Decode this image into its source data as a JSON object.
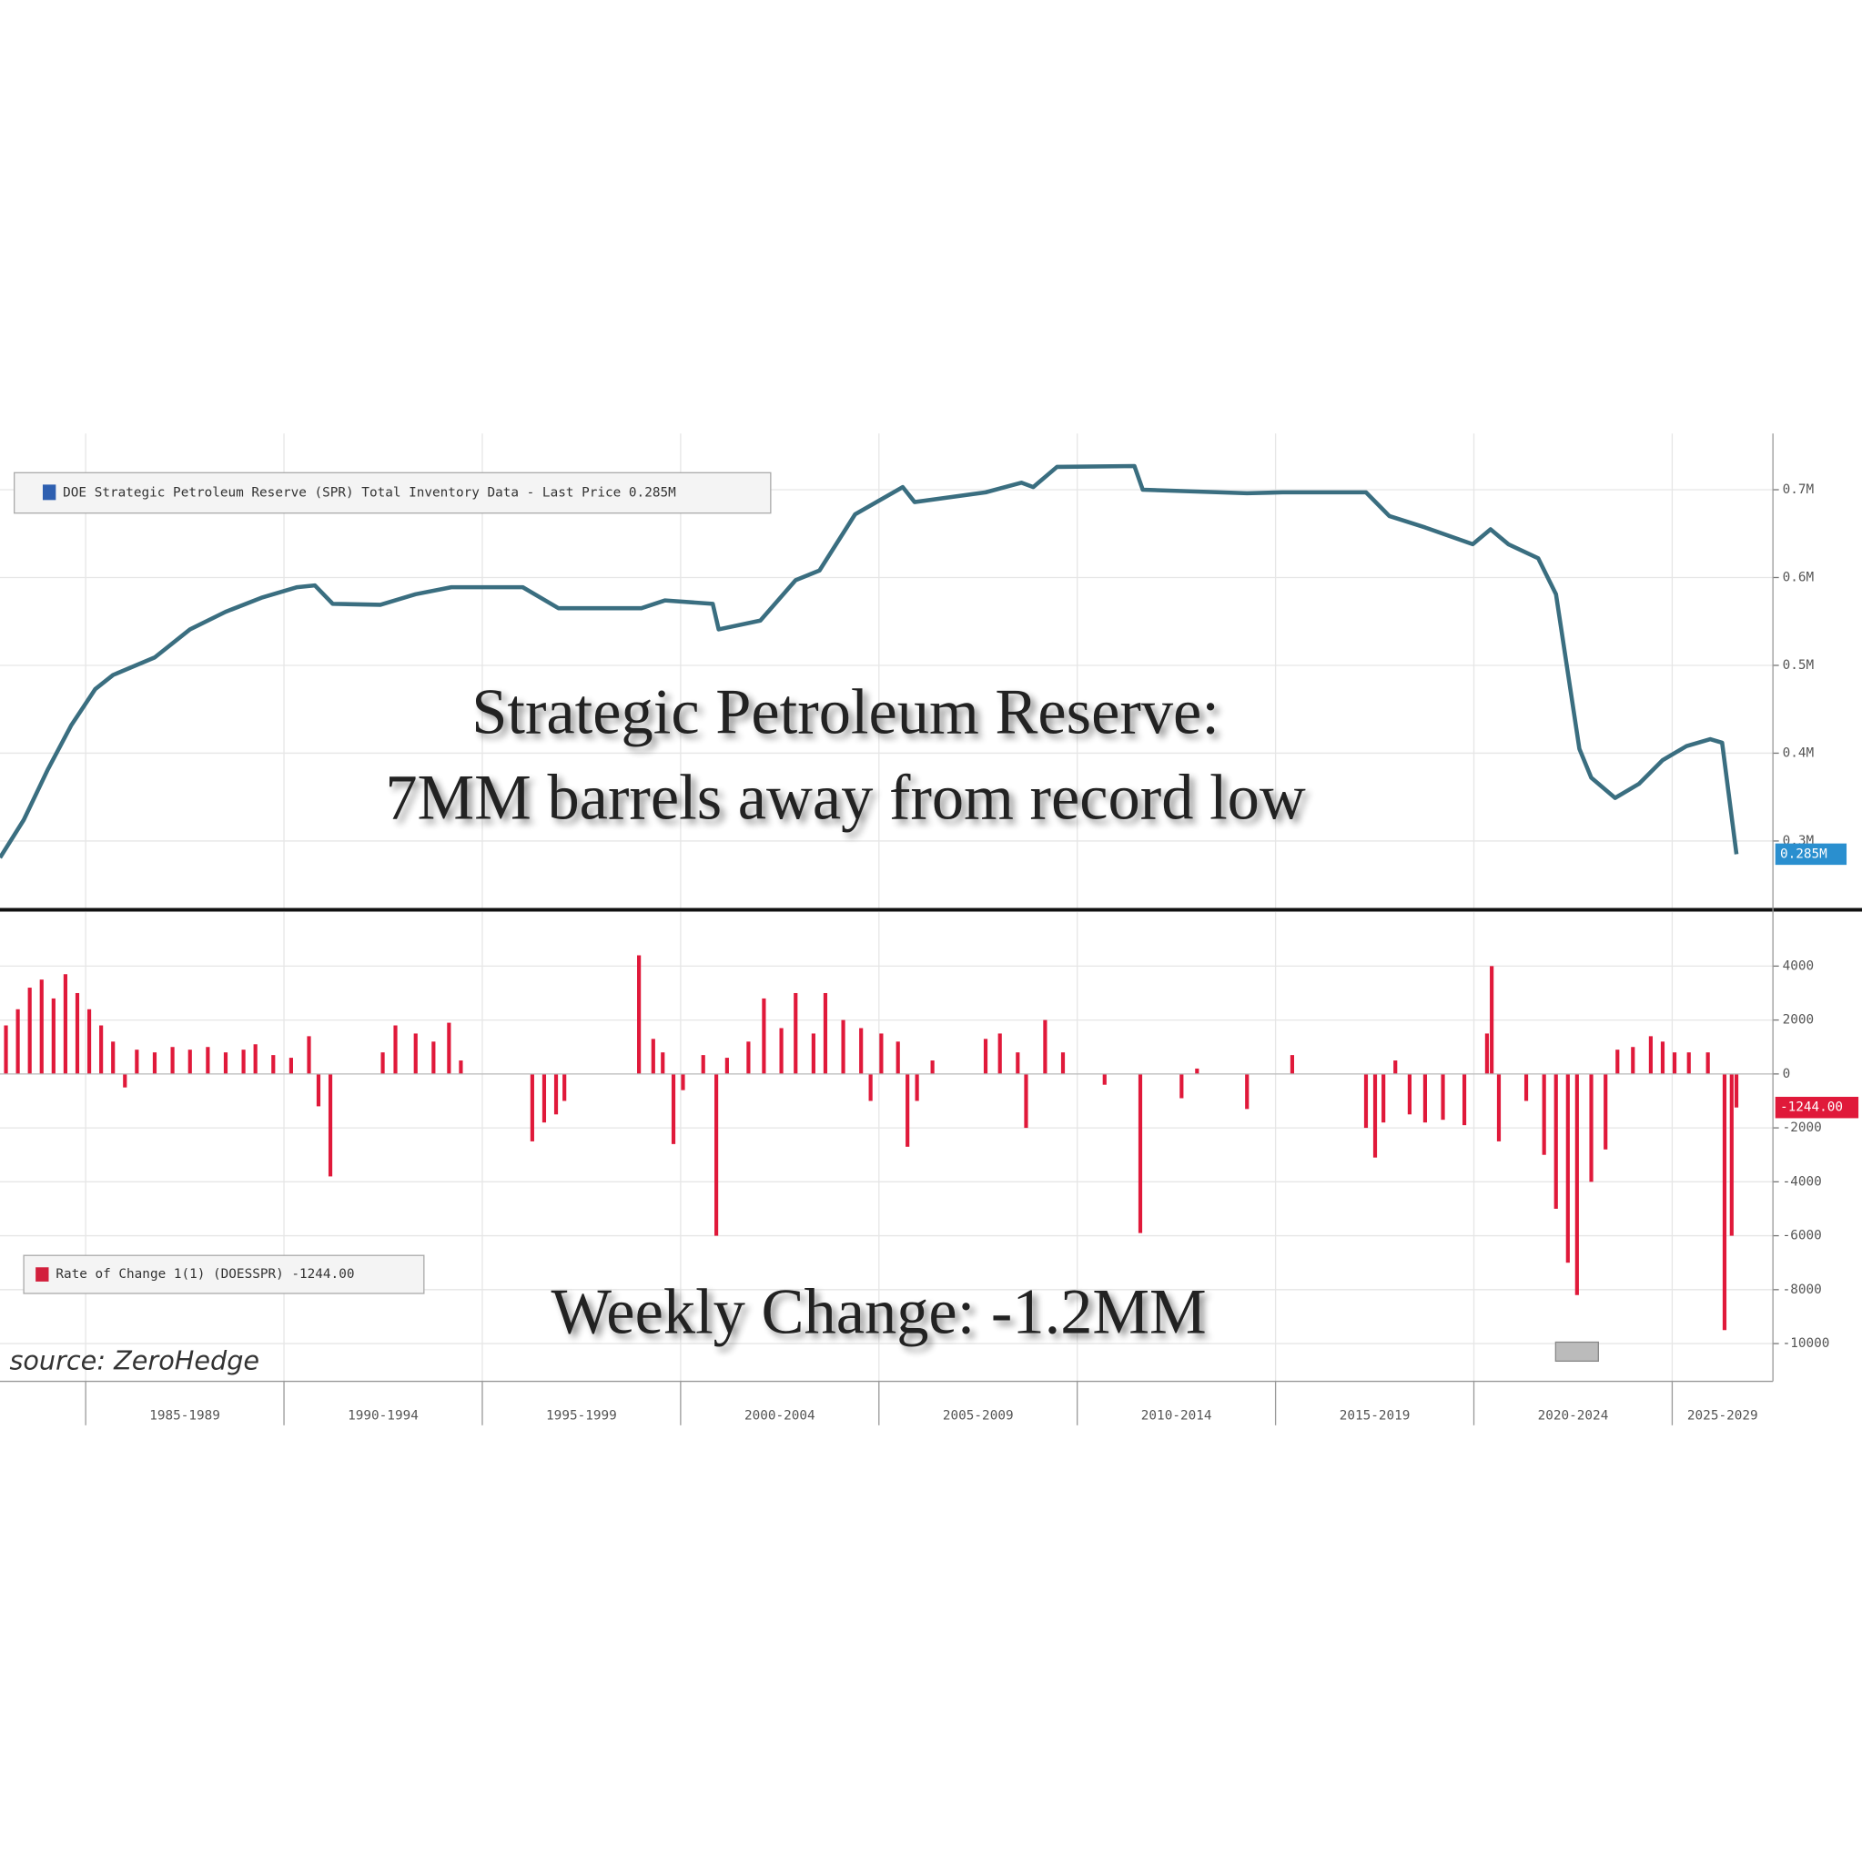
{
  "source": "source: ZeroHedge",
  "chart_data": [
    {
      "type": "line",
      "annotations": [
        "Strategic Petroleum Reserve:",
        "7MM barrels away from record low"
      ],
      "x": [
        1982.84,
        1983.44,
        1984.04,
        1984.64,
        1985.24,
        1985.69,
        1986.74,
        1987.63,
        1988.53,
        1989.43,
        1990.33,
        1990.78,
        1991.23,
        1992.43,
        1993.32,
        1994.22,
        1996.02,
        1996.92,
        1999.01,
        1999.61,
        2000.81,
        2000.96,
        2002.01,
        2002.9,
        2003.5,
        2004.4,
        2005.6,
        2005.9,
        2007.69,
        2008.59,
        2008.89,
        2009.49,
        2011.44,
        2011.65,
        2014.28,
        2015.18,
        2017.28,
        2017.87,
        2018.77,
        2019.97,
        2020.42,
        2020.87,
        2021.62,
        2022.07,
        2022.66,
        2022.96,
        2023.56,
        2024.16,
        2024.76,
        2025.36,
        2025.96,
        2026.26,
        2026.62
      ],
      "series": [
        {
          "name": "DOE Strategic Petroleum Reserve (SPR) Total Inventory Data - Last Price 0.285M",
          "color": "#3a6e80",
          "values": [
            0.281,
            0.324,
            0.381,
            0.432,
            0.473,
            0.489,
            0.509,
            0.541,
            0.561,
            0.577,
            0.589,
            0.591,
            0.57,
            0.569,
            0.581,
            0.589,
            0.589,
            0.565,
            0.565,
            0.574,
            0.57,
            0.541,
            0.551,
            0.597,
            0.608,
            0.672,
            0.703,
            0.686,
            0.697,
            0.708,
            0.703,
            0.726,
            0.727,
            0.7,
            0.696,
            0.697,
            0.697,
            0.67,
            0.657,
            0.638,
            0.655,
            0.638,
            0.622,
            0.581,
            0.405,
            0.372,
            0.349,
            0.365,
            0.392,
            0.408,
            0.416,
            0.412,
            0.285
          ]
        }
      ],
      "last_value_label": "0.285M",
      "xlim": [
        1982.84,
        2027.54
      ],
      "ylim": [
        0.223,
        0.764
      ],
      "yticks": [
        {
          "value": 0.3,
          "label": "0.3M"
        },
        {
          "value": 0.4,
          "label": "0.4M"
        },
        {
          "value": 0.5,
          "label": "0.5M"
        },
        {
          "value": 0.6,
          "label": "0.6M"
        },
        {
          "value": 0.7,
          "label": "0.7M"
        }
      ],
      "grid": true
    },
    {
      "type": "bar",
      "annotation": "Weekly Change: -1.2MM",
      "x": [
        1982.99,
        1983.29,
        1983.59,
        1983.89,
        1984.19,
        1984.49,
        1984.79,
        1985.09,
        1985.39,
        1985.69,
        1985.99,
        1986.29,
        1986.74,
        1987.19,
        1987.63,
        1988.08,
        1988.53,
        1988.98,
        1989.28,
        1989.73,
        1990.18,
        1990.63,
        1990.87,
        1991.17,
        1992.49,
        1992.81,
        1993.32,
        1993.77,
        1994.16,
        1994.46,
        1996.26,
        1996.56,
        1996.86,
        1997.07,
        1998.95,
        1999.31,
        1999.55,
        1999.82,
        2000.06,
        2000.57,
        2000.9,
        2001.17,
        2001.71,
        2002.1,
        2002.54,
        2002.9,
        2003.35,
        2003.65,
        2004.1,
        2004.55,
        2004.79,
        2005.06,
        2005.48,
        2005.72,
        2005.96,
        2006.35,
        2007.69,
        2008.05,
        2008.5,
        2008.71,
        2009.19,
        2009.64,
        2010.69,
        2011.59,
        2012.63,
        2013.02,
        2014.28,
        2015.42,
        2017.28,
        2017.51,
        2017.72,
        2018.02,
        2018.38,
        2018.77,
        2019.22,
        2019.76,
        2020.33,
        2020.45,
        2020.63,
        2021.32,
        2021.77,
        2022.07,
        2022.37,
        2022.6,
        2022.96,
        2023.32,
        2023.62,
        2024.01,
        2024.46,
        2024.76,
        2025.06,
        2025.42,
        2025.9,
        2026.32,
        2026.5,
        2026.62
      ],
      "series": [
        {
          "name": "Rate of Change 1(1) (DOESSPR) -1244.00",
          "color": "#e0193a",
          "values": [
            1800,
            2400,
            3200,
            3500,
            2800,
            3700,
            3000,
            2400,
            1800,
            1200,
            -500,
            900,
            800,
            1000,
            900,
            1000,
            800,
            900,
            1100,
            700,
            600,
            1400,
            -1200,
            -3800,
            800,
            1800,
            1500,
            1200,
            1900,
            500,
            -2500,
            -1800,
            -1500,
            -1000,
            4400,
            1300,
            800,
            -2600,
            -600,
            700,
            -6000,
            600,
            1200,
            2800,
            1700,
            3000,
            1500,
            3000,
            2000,
            1700,
            -1000,
            1500,
            1200,
            -2700,
            -1000,
            500,
            1300,
            1500,
            800,
            -2000,
            2000,
            800,
            -400,
            -5900,
            -900,
            200,
            -1300,
            700,
            -2000,
            -3100,
            -1800,
            500,
            -1500,
            -1800,
            -1700,
            -1900,
            1500,
            4000,
            -2500,
            -1000,
            -3000,
            -5000,
            -7000,
            -8200,
            -4000,
            -2800,
            900,
            1000,
            1400,
            1200,
            800,
            800,
            800,
            -9500,
            -6000,
            -1244
          ]
        }
      ],
      "last_value_label": "-1244.00",
      "xlim": [
        1982.84,
        2027.54
      ],
      "ylim": [
        -11400,
        6000
      ],
      "yticks": [
        4000,
        2000,
        0,
        -2000,
        -4000,
        -6000,
        -8000,
        -10000
      ],
      "xticks": [
        {
          "value": 1985,
          "label": "1985-1989"
        },
        {
          "value": 1990,
          "label": "1990-1994"
        },
        {
          "value": 1995,
          "label": "1995-1999"
        },
        {
          "value": 2000,
          "label": "2000-2004"
        },
        {
          "value": 2005,
          "label": "2005-2009"
        },
        {
          "value": 2010,
          "label": "2010-2014"
        },
        {
          "value": 2015,
          "label": "2015-2019"
        },
        {
          "value": 2020,
          "label": "2020-2024"
        },
        {
          "value": 2025,
          "label": "2025-2029"
        }
      ],
      "grid": true
    }
  ]
}
